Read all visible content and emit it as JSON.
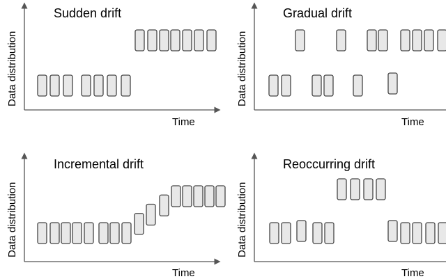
{
  "panels": [
    {
      "title": "Sudden drift",
      "ylabel": "Data distribution",
      "xlabel": "Time",
      "pattern": "sudden",
      "box_levels": [
        "low",
        "low",
        "low",
        "low",
        "low",
        "low",
        "low",
        "high",
        "high",
        "high",
        "high",
        "high",
        "high",
        "high"
      ]
    },
    {
      "title": "Gradual drift",
      "ylabel": "Data distribution",
      "xlabel": "Time",
      "pattern": "gradual",
      "box_levels": [
        "low",
        "low",
        "high",
        "low",
        "low",
        "high",
        "low",
        "high",
        "high",
        "low",
        "high",
        "high",
        "high",
        "high"
      ]
    },
    {
      "title": "Incremental drift",
      "ylabel": "Data distribution",
      "xlabel": "Time",
      "pattern": "incremental",
      "box_levels": [
        0,
        0,
        0,
        0,
        0,
        0,
        0,
        0,
        0.25,
        0.5,
        0.75,
        1,
        1,
        1,
        1,
        1,
        1
      ]
    },
    {
      "title": "Reoccurring drift",
      "ylabel": "Data distribution",
      "xlabel": "Time",
      "pattern": "reoccurring",
      "box_levels": [
        "low",
        "low",
        "low",
        "low",
        "low",
        "high",
        "high",
        "high",
        "high",
        "low",
        "low",
        "low",
        "low",
        "low"
      ]
    }
  ]
}
